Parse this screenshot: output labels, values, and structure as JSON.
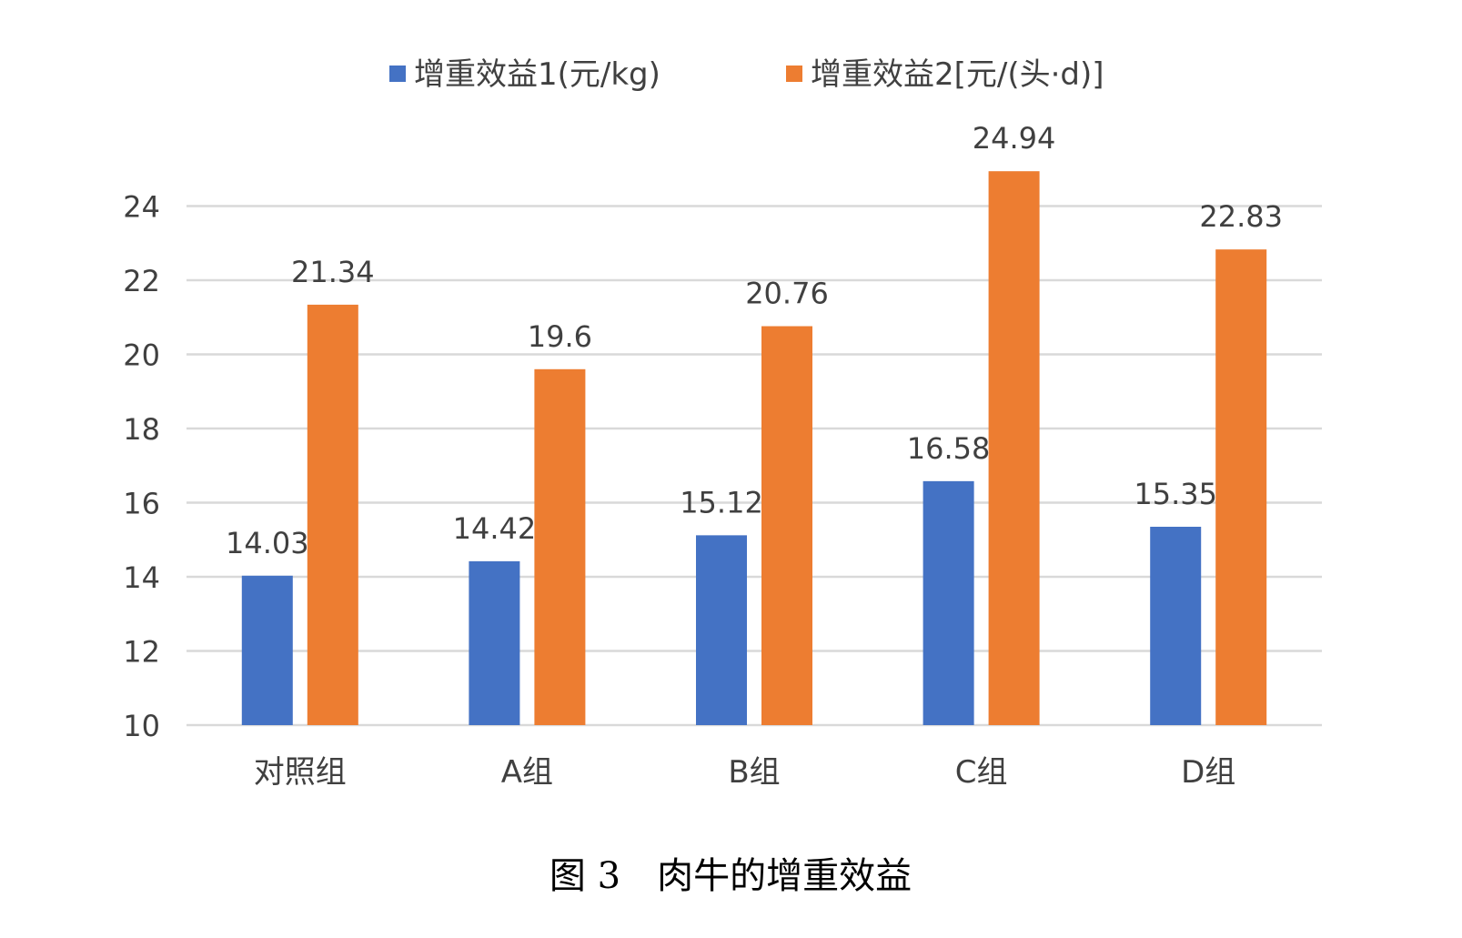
{
  "caption": "图 3　肉牛的增重效益",
  "chart_data": {
    "type": "bar",
    "categories": [
      "对照组",
      "A组",
      "B组",
      "C组",
      "D组"
    ],
    "series": [
      {
        "name": "增重效益1(元/kg)",
        "color": "#4472C4",
        "values": [
          14.03,
          14.42,
          15.12,
          16.58,
          15.35
        ]
      },
      {
        "name": "增重效益2[元/(头·d)]",
        "color": "#ED7D31",
        "values": [
          21.34,
          19.6,
          20.76,
          24.94,
          22.83
        ]
      }
    ],
    "data_labels": [
      [
        "14.03",
        "14.42",
        "15.12",
        "16.58",
        "15.35"
      ],
      [
        "21.34",
        "19.6",
        "20.76",
        "24.94",
        "22.83"
      ]
    ],
    "ylim": [
      10,
      25
    ],
    "yticks": [
      10,
      12,
      14,
      16,
      18,
      20,
      22,
      24
    ],
    "grid": true,
    "legend": "top-center",
    "gridline_color": "#D9D9D9",
    "text_color": "#404040"
  }
}
